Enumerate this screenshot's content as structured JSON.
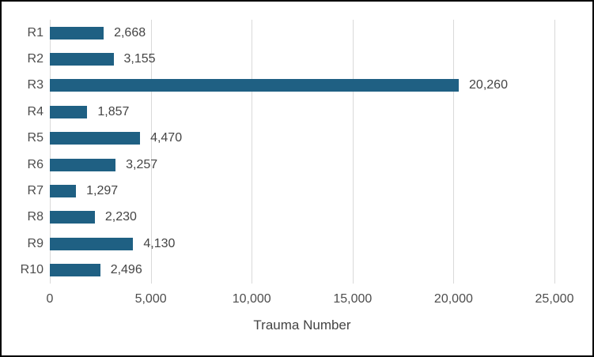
{
  "chart_data": {
    "type": "bar",
    "orientation": "horizontal",
    "title": "",
    "xlabel": "Trauma Number",
    "ylabel": "",
    "categories": [
      "R1",
      "R2",
      "R3",
      "R4",
      "R5",
      "R6",
      "R7",
      "R8",
      "R9",
      "R10"
    ],
    "values": [
      2668,
      3155,
      20260,
      1857,
      4470,
      3257,
      1297,
      2230,
      4130,
      2496
    ],
    "value_labels": [
      "2,668",
      "3,155",
      "20,260",
      "1,857",
      "4,470",
      "3,257",
      "1,297",
      "2,230",
      "4,130",
      "2,496"
    ],
    "xlim": [
      0,
      25000
    ],
    "x_ticks": [
      0,
      5000,
      10000,
      15000,
      20000,
      25000
    ],
    "x_tick_labels": [
      "0",
      "5,000",
      "10,000",
      "15,000",
      "20,000",
      "25,000"
    ],
    "grid": "vertical-only",
    "legend": "none",
    "data_label_position": "outside-end"
  },
  "colors": {
    "bar": "#1f6083",
    "gridline": "#d9d9d9",
    "text": "#4d4d4d",
    "frame_border": "#000000",
    "background": "#ffffff"
  }
}
